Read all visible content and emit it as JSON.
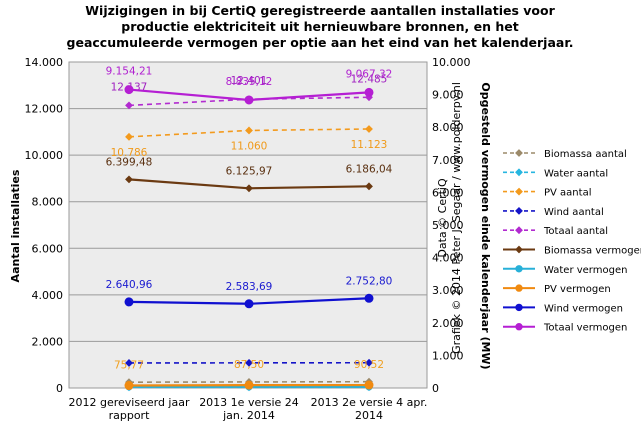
{
  "chart_data": {
    "type": "line",
    "title": "Wijzigingen in bij CertiQ geregistreerde aantallen installaties voor productie elektriciteit uit hernieuwbare bronnen, en het geaccumuleerde vermogen per optie aan het eind van het kalenderjaar.",
    "title_lines": [
      "Wijzigingen in bij CertiQ geregistreerde aantallen installaties voor",
      "productie elektriciteit uit hernieuwbare bronnen, en het",
      "geaccumuleerde vermogen per optie aan het eind van het kalenderjaar."
    ],
    "categories": [
      [
        "2012 gereviseerd jaar",
        "rapport"
      ],
      [
        "2013 1e versie 24",
        "jan. 2014"
      ],
      [
        "2013 2e versie 4 apr.",
        "2014"
      ]
    ],
    "ylabel": "Aantal installaties",
    "y2label": "Opgesteld vermogen einde kalenderjaar (MW)",
    "ylim": [
      0,
      14000
    ],
    "y2lim": [
      0,
      10000
    ],
    "yticks": [
      "0",
      "2.000",
      "4.000",
      "6.000",
      "8.000",
      "10.000",
      "12.000",
      "14.000"
    ],
    "y2ticks": [
      "0",
      "1.000",
      "2.000",
      "3.000",
      "4.000",
      "5.000",
      "6.000",
      "7.000",
      "8.000",
      "9.000",
      "10.000"
    ],
    "grid": true,
    "legend_position": "right",
    "watermark_lines": [
      "Data © CertiQ",
      "Grafiek © 2014 Peter J. Segaar / www.polderpv.nl"
    ],
    "series": [
      {
        "name": "Biomassa aantal",
        "axis": "left",
        "dash": true,
        "marker": "diamond",
        "color": "#9c8a6a",
        "values": [
          250,
          260,
          270
        ],
        "labels": []
      },
      {
        "name": "Water aantal",
        "axis": "left",
        "dash": true,
        "marker": "diamond",
        "color": "#27b6e0",
        "values": [
          30,
          30,
          32
        ],
        "labels": []
      },
      {
        "name": "PV aantal",
        "axis": "left",
        "dash": true,
        "marker": "diamond",
        "color": "#f39a1d",
        "values": [
          10786,
          11060,
          11123
        ],
        "labels": [
          "10.786",
          "11.060",
          "11.123"
        ],
        "label_color": "#f09a1a"
      },
      {
        "name": "Wind aantal",
        "axis": "left",
        "dash": true,
        "marker": "diamond",
        "color": "#1515c8",
        "values": [
          1075,
          1080,
          1085
        ],
        "labels": []
      },
      {
        "name": "Totaal aantal",
        "axis": "left",
        "dash": true,
        "marker": "diamond",
        "color": "#b22bd0",
        "values": [
          12137,
          12401,
          12485
        ],
        "labels": [
          "12.137",
          "12.401",
          "12.485"
        ],
        "label_color": "#a020c0"
      },
      {
        "name": "Biomassa vermogen",
        "axis": "right",
        "dash": false,
        "marker": "diamond",
        "color": "#6b3a12",
        "values": [
          6399.48,
          6125.97,
          6186.04
        ],
        "labels": [
          "6.399,48",
          "6.125,97",
          "6.186,04"
        ],
        "label_color": "#5a3010"
      },
      {
        "name": "Water vermogen",
        "axis": "right",
        "dash": false,
        "marker": "circle",
        "color": "#28b0d8",
        "values": [
          38,
          38,
          38
        ],
        "labels": []
      },
      {
        "name": "PV vermogen",
        "axis": "right",
        "dash": false,
        "marker": "circle",
        "color": "#f08a10",
        "values": [
          75.77,
          87.5,
          90.52
        ],
        "labels": [
          "75,77",
          "87,50",
          "90,52"
        ],
        "label_color": "#f0a020"
      },
      {
        "name": "Wind vermogen",
        "axis": "right",
        "dash": false,
        "marker": "circle",
        "color": "#1010d0",
        "values": [
          2640.96,
          2583.69,
          2752.8
        ],
        "labels": [
          "2.640,96",
          "2.583,69",
          "2.752,80"
        ],
        "label_color": "#1a1ad0"
      },
      {
        "name": "Totaal vermogen",
        "axis": "right",
        "dash": false,
        "marker": "circle",
        "color": "#b51fd3",
        "values": [
          9154.21,
          8835.12,
          9067.32
        ],
        "labels": [
          "9.154,21",
          "8.835,12",
          "9.067,32"
        ],
        "label_color": "#b020d0"
      }
    ]
  }
}
